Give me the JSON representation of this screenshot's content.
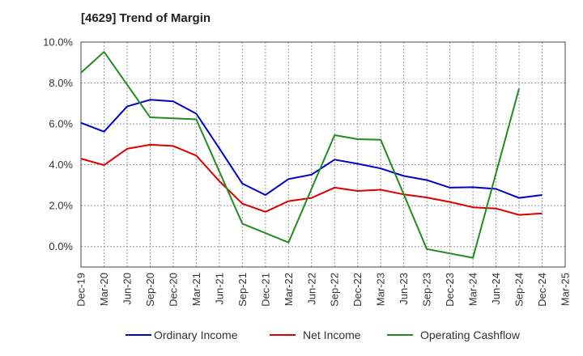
{
  "chart_data": {
    "type": "line",
    "title": "[4629]  Trend of Margin",
    "xlabel": "",
    "ylabel": "",
    "x": [
      "Dec-19",
      "Mar-20",
      "Jun-20",
      "Sep-20",
      "Dec-20",
      "Mar-21",
      "Jun-21",
      "Sep-21",
      "Dec-21",
      "Mar-22",
      "Jun-22",
      "Sep-22",
      "Dec-22",
      "Mar-23",
      "Jun-23",
      "Sep-23",
      "Dec-23",
      "Mar-24",
      "Jun-24",
      "Sep-24",
      "Dec-24",
      "Mar-25"
    ],
    "ylim": [
      -1.0,
      10.0
    ],
    "yticks": [
      0.0,
      2.0,
      4.0,
      6.0,
      8.0,
      10.0
    ],
    "ytick_labels": [
      "0.0%",
      "2.0%",
      "4.0%",
      "6.0%",
      "8.0%",
      "10.0%"
    ],
    "grid": true,
    "legend_position": "bottom",
    "series": [
      {
        "name": "Ordinary Income",
        "color": "#0000cc",
        "values": [
          6.05,
          5.62,
          6.85,
          7.18,
          7.1,
          6.5,
          4.8,
          3.08,
          2.52,
          3.3,
          3.52,
          4.25,
          4.05,
          3.82,
          3.45,
          3.25,
          2.88,
          2.9,
          2.82,
          2.38,
          2.52,
          null
        ]
      },
      {
        "name": "Net Income",
        "color": "#dd0000",
        "values": [
          4.3,
          3.98,
          4.78,
          4.98,
          4.92,
          4.45,
          3.2,
          2.1,
          1.7,
          2.22,
          2.38,
          2.88,
          2.72,
          2.78,
          2.55,
          2.4,
          2.18,
          1.92,
          1.86,
          1.55,
          1.62,
          null
        ]
      },
      {
        "name": "Operating Cashflow",
        "color": "#228b22",
        "values": [
          8.5,
          9.52,
          null,
          6.32,
          null,
          6.22,
          null,
          1.12,
          null,
          0.2,
          null,
          5.45,
          5.25,
          5.22,
          null,
          -0.12,
          null,
          -0.55,
          null,
          7.72,
          null,
          null
        ]
      }
    ]
  }
}
